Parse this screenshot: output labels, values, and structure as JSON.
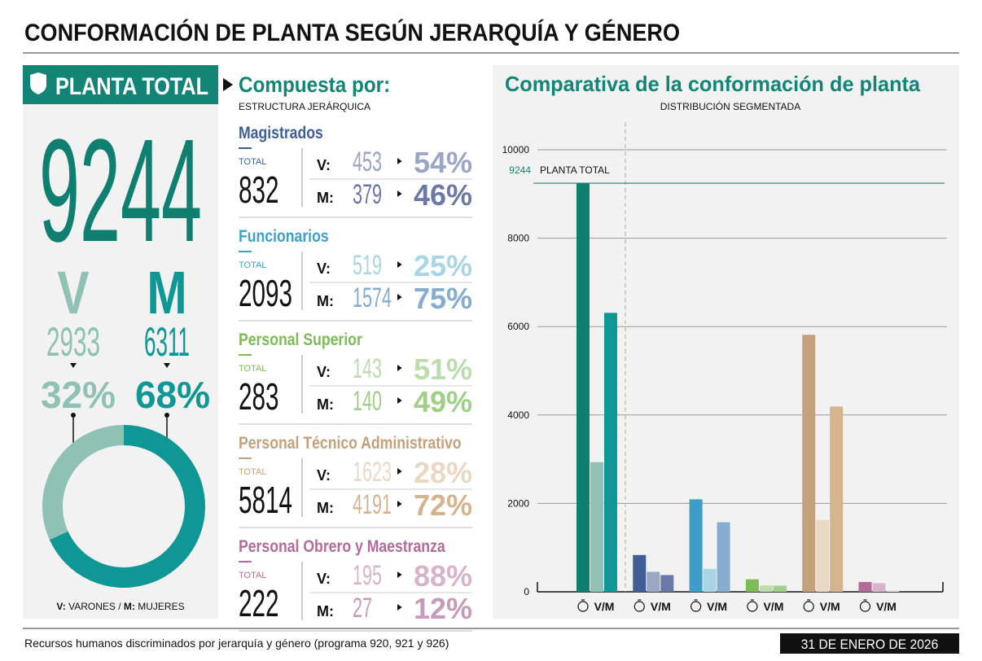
{
  "title": "CONFORMACIÓN DE PLANTA SEGÚN JERARQUÍA Y GÉNERO",
  "planta_total": {
    "badge": "PLANTA TOTAL",
    "total": 9244,
    "v_label": "V",
    "m_label": "M",
    "v": 2933,
    "m": 6311,
    "v_pct": "32%",
    "m_pct": "68%",
    "v_color": "#8fc1b5",
    "m_color": "#0e9795",
    "legend": [
      "V:",
      "VARONES",
      "/",
      "M:",
      "MUJERES"
    ]
  },
  "composicion": {
    "title": "Compuesta por:",
    "subtitle": "ESTRUCTURA JERÁRQUICA",
    "total_label": "TOTAL",
    "v_label": "V:",
    "m_label": "M:",
    "groups": [
      {
        "name": "Magistrados",
        "color": "#3f5f94",
        "v_color": "#9aa6c4",
        "m_color": "#6b78a8",
        "total": 832,
        "v": 453,
        "m": 379,
        "v_pct": "54%",
        "m_pct": "46%"
      },
      {
        "name": "Funcionarios",
        "color": "#3fa0c8",
        "v_color": "#a9d5e5",
        "m_color": "#86acd0",
        "total": 2093,
        "v": 519,
        "m": 1574,
        "v_pct": "25%",
        "m_pct": "75%"
      },
      {
        "name": "Personal Superior",
        "color": "#7cbb58",
        "v_color": "#bcdcae",
        "m_color": "#a0cf87",
        "total": 283,
        "v": 143,
        "m": 140,
        "v_pct": "51%",
        "m_pct": "49%"
      },
      {
        "name": "Personal Técnico Administrativo",
        "color": "#c4a17a",
        "v_color": "#ead8c4",
        "m_color": "#d3b48e",
        "total": 5814,
        "v": 1623,
        "m": 4191,
        "v_pct": "28%",
        "m_pct": "72%"
      },
      {
        "name": "Personal Obrero y Maestranza",
        "color": "#b36c9a",
        "v_color": "#d8b4cc",
        "m_color": "#c79bba",
        "total": 222,
        "v": 195,
        "m": 27,
        "v_pct": "88%",
        "m_pct": "12%"
      }
    ]
  },
  "chart_data": {
    "type": "bar",
    "title": "Comparativa de la conformación de planta",
    "subtitle": "DISTRIBUCIÓN SEGMENTADA",
    "categories": [
      "V/M",
      "V/M",
      "V/M",
      "V/M",
      "V/M",
      "V/M"
    ],
    "values": [
      [
        9244,
        2933,
        6311
      ],
      [
        832,
        453,
        379
      ],
      [
        2093,
        519,
        1574
      ],
      [
        283,
        143,
        140
      ],
      [
        5814,
        1623,
        4191
      ],
      [
        222,
        195,
        27
      ]
    ],
    "colors": [
      [
        "#0f7f6f",
        "#8fc1b5",
        "#0e9795"
      ],
      [
        "#3f5f94",
        "#9aa6c4",
        "#6b78a8"
      ],
      [
        "#3f9ec9",
        "#a9d5e5",
        "#86acd0"
      ],
      [
        "#7cbb58",
        "#bcdcae",
        "#a0cf87"
      ],
      [
        "#c4a17a",
        "#ead8c4",
        "#d3b48e"
      ],
      [
        "#b36c9a",
        "#d8b4cc",
        "#e8d9e2"
      ]
    ],
    "ylim": [
      0,
      10000
    ],
    "yticks": [
      0,
      2000,
      4000,
      6000,
      8000,
      10000
    ],
    "grid": true,
    "reference": {
      "value": 9244,
      "label": "PLANTA TOTAL",
      "color": "#138577"
    }
  },
  "footer": {
    "note": "Recursos humanos discriminados por jerarquía y género (programa 920, 921 y 926)",
    "date": "31 DE ENERO DE 2026"
  }
}
